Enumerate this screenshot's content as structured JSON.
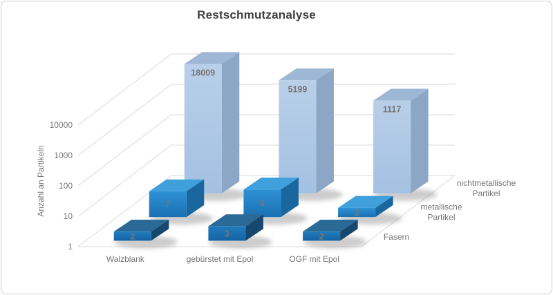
{
  "frame": {
    "background": "#ffffff",
    "border_color": "#cccccc"
  },
  "chart_data": {
    "type": "bar",
    "subtype": "3d-column",
    "title": "Restschmutzanalyse",
    "ylabel": "Anzahl an Partikeln",
    "xlabel": "",
    "yscale": "log",
    "ylim": [
      1,
      100000
    ],
    "yticks": [
      "1",
      "10",
      "100",
      "1000",
      "10000"
    ],
    "grid": true,
    "legend_position": "depth-axis-right",
    "categories": [
      "Walzblank",
      "gebürstet mit Epol",
      "OGF mit Epol"
    ],
    "series": [
      {
        "name": "Fasern",
        "values": [
          2,
          3,
          2
        ],
        "colors": {
          "front_top": "#217cbd",
          "front_bottom": "#1463a3",
          "top": "#2b6a96",
          "side": "#16486f",
          "label": "#173a5c"
        }
      },
      {
        "name": "metallische Partikel",
        "values": [
          7,
          8,
          2
        ],
        "colors": {
          "front_top": "#2e92d5",
          "front_bottom": "#1a70b2",
          "top": "#3fa0dc",
          "side": "#1a669f",
          "label": "#173a5c"
        }
      },
      {
        "name": "nichtmetallische Partikel",
        "values": [
          18009,
          5199,
          1117
        ],
        "colors": {
          "front_top": "#b9cfe9",
          "front_bottom": "#a3c1e2",
          "top": "#9db7d5",
          "side": "#8ca7c5",
          "label": "#262626"
        }
      }
    ],
    "style": {
      "title_color": "#3f3f3f",
      "axis_text_color": "#757575",
      "gridline_color": "#d9d9d9"
    }
  }
}
